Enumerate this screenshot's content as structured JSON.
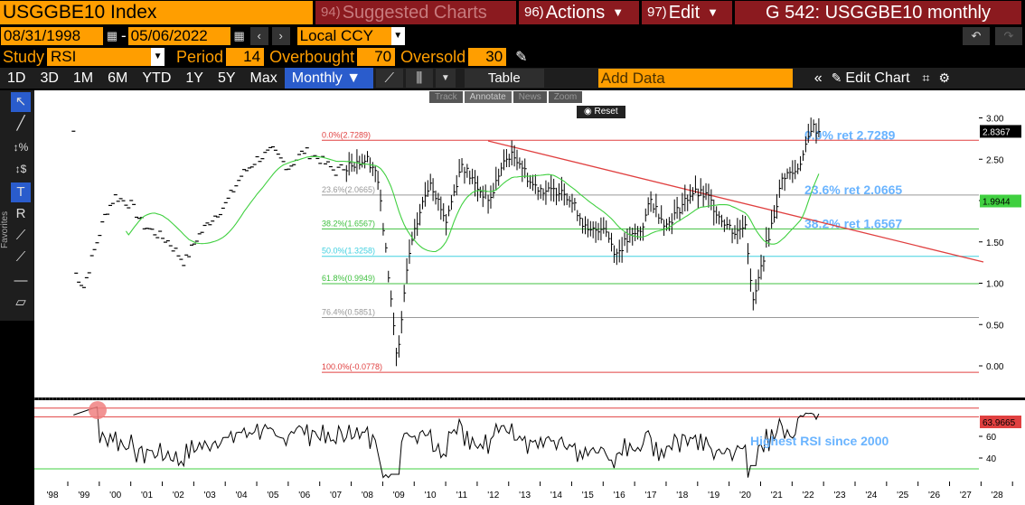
{
  "header": {
    "ticker": "USGGBE10 Index",
    "suggested": {
      "num": "94)",
      "label": "Suggested Charts"
    },
    "actions": {
      "num": "96)",
      "label": "Actions"
    },
    "edit": {
      "num": "97)",
      "label": "Edit"
    },
    "window_title": "G 542: USGGBE10 monthly"
  },
  "dates": {
    "start": "08/31/1998",
    "end": "05/06/2022",
    "currency": "Local CCY"
  },
  "study": {
    "study_label": "Study",
    "study_value": "RSI",
    "period_label": "Period",
    "period_value": "14",
    "overbought_label": "Overbought",
    "overbought_value": "70",
    "oversold_label": "Oversold",
    "oversold_value": "30"
  },
  "range_bar": {
    "ranges": [
      "1D",
      "3D",
      "1M",
      "6M",
      "YTD",
      "1Y",
      "5Y",
      "Max"
    ],
    "frequency": "Monthly ▼",
    "table_label": "Table",
    "add_data_placeholder": "Add Data",
    "edit_chart_label": "Edit Chart"
  },
  "chart_controls": {
    "track": "Track",
    "annotate": "Annotate",
    "news": "News",
    "zoom": "Zoom",
    "reset": "Reset"
  },
  "toolbar_side": {
    "favorites": "Favorites"
  },
  "chart_data": [
    {
      "type": "ohlc",
      "series": [
        {
          "name": "USGGBE10 Index monthly"
        }
      ],
      "y_ticks": [
        "3.00",
        "2.50",
        "2.00",
        "1.50",
        "1.00",
        "0.50",
        "0.00"
      ],
      "ylim": [
        -0.3,
        3.3
      ],
      "x_ticks": [
        "'98",
        "'99",
        "'00",
        "'01",
        "'02",
        "'03",
        "'04",
        "'05",
        "'06",
        "'07",
        "'08",
        "'09",
        "'10",
        "'11",
        "'12",
        "'13",
        "'14",
        "'15",
        "'16",
        "'17",
        "'18",
        "'19",
        "'20",
        "'21",
        "'22",
        "'23",
        "'24",
        "'25",
        "'26",
        "'27",
        "'28"
      ],
      "last_value": "2.8367",
      "ma_last_value": "1.9944",
      "fib_levels": [
        {
          "label": "0.0%(2.7289)",
          "value": 2.7289,
          "color": "#e04040"
        },
        {
          "label": "23.6%(2.0665)",
          "value": 2.0665,
          "color": "#999999"
        },
        {
          "label": "38.2%(1.6567)",
          "value": 1.6567,
          "color": "#40c040"
        },
        {
          "label": "50.0%(1.3258)",
          "value": 1.3258,
          "color": "#40d0e0"
        },
        {
          "label": "61.8%(0.9949)",
          "value": 0.9949,
          "color": "#40c040"
        },
        {
          "label": "76.4%(0.5851)",
          "value": 0.5851,
          "color": "#999999"
        },
        {
          "label": "100.0%(-0.0778)",
          "value": -0.0778,
          "color": "#e04040"
        }
      ],
      "annotations": [
        {
          "text": "0.0% ret 2.7289"
        },
        {
          "text": "23.6% ret 2.0665"
        },
        {
          "text": "38.2% ret 1.6567"
        }
      ]
    },
    {
      "type": "line",
      "series": [
        {
          "name": "RSI"
        }
      ],
      "y_ticks": [
        "60",
        "40"
      ],
      "last_value": "63.9665",
      "annotation": "Highest RSI since 2000"
    }
  ],
  "colors": {
    "bloomberg_orange": "#ff9e00",
    "menu_red": "#8b1a1f",
    "active_blue": "#2a5ccc",
    "fib_red": "#e04040",
    "fib_green": "#40c040",
    "fib_cyan": "#40d0e0",
    "annotation_blue": "#6ab4ff",
    "ma_green": "#40d040"
  }
}
